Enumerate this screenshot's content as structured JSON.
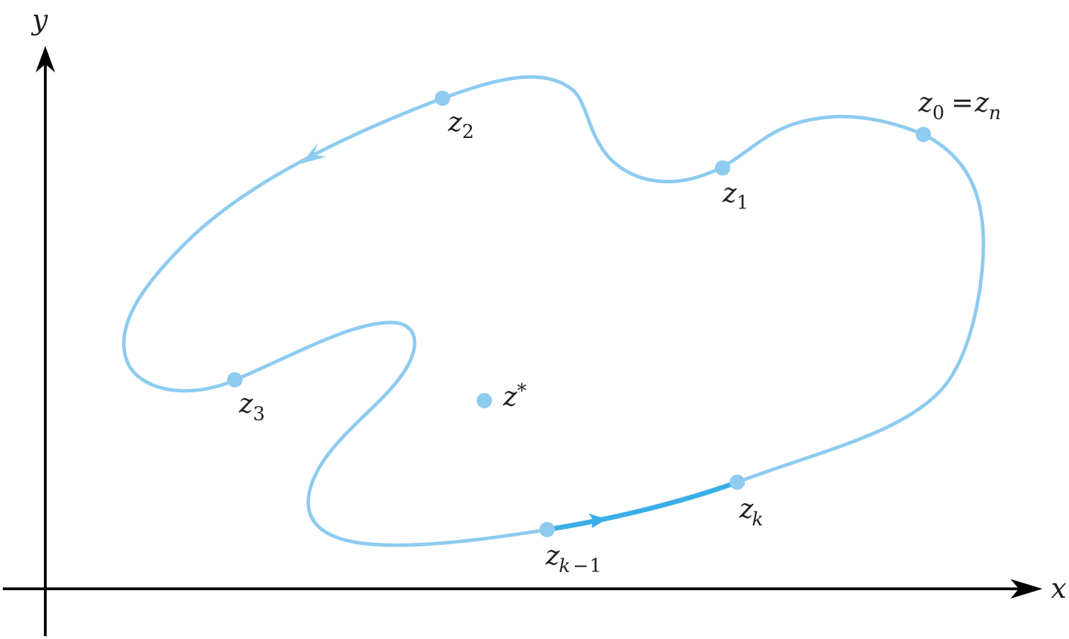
{
  "axes": {
    "x_label": "x",
    "y_label": "y"
  },
  "points": {
    "z0": {
      "base": "z",
      "sub": "0"
    },
    "zn": {
      "equals": "=",
      "base": "z",
      "sub": "n"
    },
    "z1": {
      "base": "z",
      "sub": "1"
    },
    "z2": {
      "base": "z",
      "sub": "2"
    },
    "z3": {
      "base": "z",
      "sub": "3"
    },
    "zk": {
      "base": "z",
      "sub": "k"
    },
    "zk_minus_1": {
      "base": "z",
      "sub_var": "k",
      "sub_op": "−",
      "sub_num": "1"
    },
    "zstar": {
      "base": "z",
      "sup": "*"
    }
  },
  "colors": {
    "curve": "#8ecbef",
    "highlight_arc": "#3aaee8",
    "point": "#8ecbef",
    "axis": "#000000",
    "text": "#231f20"
  }
}
